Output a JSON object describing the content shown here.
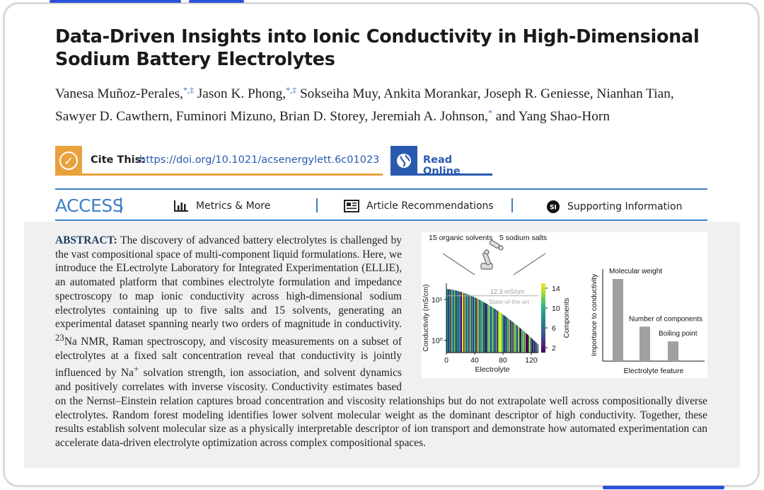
{
  "article": {
    "title": "Data-Driven Insights into Ionic Conductivity in High-Dimensional Sodium Battery Electrolytes",
    "authors": [
      {
        "name": "Vanesa Muñoz-Perales,",
        "marks": "*,‡"
      },
      {
        "name": " Jason K. Phong,",
        "marks": "*,‡"
      },
      {
        "name": " Sokseiha Muy, Ankita Morankar, Joseph R. Geniesse, Nianhan Tian, Sawyer D. Cawthern, Fuminori Mizuno, Brian D. Storey, Jeremiah A. Johnson,",
        "marks": "*"
      },
      {
        "name": " and Yang Shao-Horn",
        "marks": ""
      }
    ],
    "cite_label": "Cite This:",
    "cite_link": "https://doi.org/10.1021/acsenergylett.6c01023",
    "read_online": "Read Online",
    "access_label": "ACCESS",
    "tabs": [
      {
        "label": "Metrics & More",
        "icon": "bar-chart-icon"
      },
      {
        "label": "Article Recommendations",
        "icon": "article-icon"
      },
      {
        "label": "Supporting Information",
        "icon": "si-badge-icon"
      }
    ],
    "abstract_label": "ABSTRACT:",
    "abstract_part1": "The discovery of advanced battery electrolytes is challenged by the vast compositional space of multi-component liquid formulations. Here, we introduce the ELectrolyte Laboratory for Integrated Experimentation (ELLIE), an automated platform that combines electrolyte formulation and impedance spectroscopy to map ionic conductivity across high-dimensional sodium electrolytes containing up to five salts and 15 solvents, generating an experimental dataset spanning nearly two orders of magnitude in conductivity. ",
    "abstract_sup1": "23",
    "abstract_part2": "Na NMR, Raman spectroscopy, and viscosity measurements on a subset of electrolytes at a fixed salt concentration reveal that conductivity is jointly influenced by Na",
    "abstract_sup2": "+",
    "abstract_part3": " solvation strength, ion association, and solvent dynamics and positively correlates with inverse viscosity. Conductivity estimates based on the Nernst–Einstein relation captures broad concentration and viscosity relationships but do not extrapolate well across compositionally diverse electrolytes. Random forest modeling identifies lower solvent molecular weight as the dominant descriptor of high conductivity. Together, these results establish solvent molecular size as a physically interpretable descriptor of ion transport and demonstrate how automated experimentation can accelerate data-driven electrolyte optimization across complex compositional spaces."
  },
  "toc_graphic": {
    "label_solvents": "15 organic solvents",
    "label_salts": "5 sodium salts",
    "colors": {
      "bar": "#a0a0a0",
      "accent": "#3f7fc7",
      "orange": "#e8a23b"
    }
  },
  "chart_data": [
    {
      "type": "bar",
      "title": "",
      "xlabel": "Electrolyte",
      "ylabel": "Conductivity (mS/cm)",
      "y_scale": "log",
      "ylim": [
        0.5,
        25
      ],
      "xlim": [
        0,
        130
      ],
      "x_ticks": [
        "0",
        "40",
        "80",
        "120"
      ],
      "y_ticks": [
        "10^0",
        "10^1"
      ],
      "reference_line": {
        "value": 12.3,
        "label": "12.3 mS/cm",
        "sublabel": "State-of-the-art"
      },
      "colorbar": {
        "label": "Components",
        "ticks": [
          "2",
          "6",
          "10",
          "14"
        ],
        "range": [
          1,
          15
        ]
      },
      "n_points": 130,
      "value_range": [
        0.8,
        18
      ]
    },
    {
      "type": "bar",
      "title": "",
      "xlabel": "Electrolyte feature",
      "ylabel": "Importance to conductivity",
      "categories": [
        "Molecular weight",
        "Number of components",
        "Boiling point"
      ],
      "values": [
        1.0,
        0.42,
        0.24
      ]
    }
  ]
}
